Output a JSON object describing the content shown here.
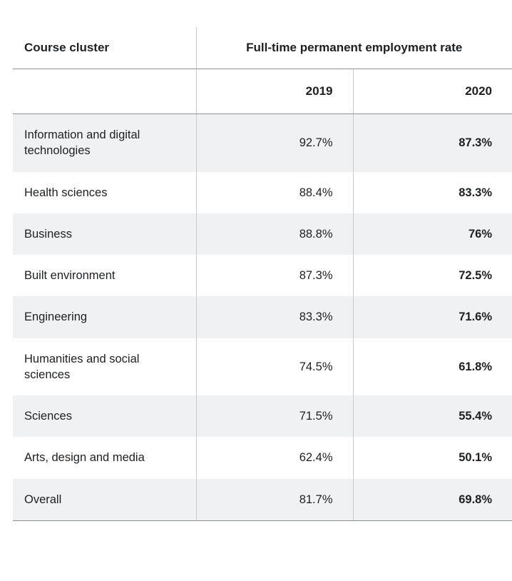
{
  "table": {
    "col1_header": "Course cluster",
    "group_header": "Full-time permanent employment rate",
    "year_headers": [
      "2019",
      "2020"
    ],
    "rows": [
      {
        "label": "Information and digital technologies",
        "y2019": "92.7%",
        "y2020": "87.3%"
      },
      {
        "label": "Health sciences",
        "y2019": "88.4%",
        "y2020": "83.3%"
      },
      {
        "label": "Business",
        "y2019": "88.8%",
        "y2020": "76%"
      },
      {
        "label": "Built environment",
        "y2019": "87.3%",
        "y2020": "72.5%"
      },
      {
        "label": "Engineering",
        "y2019": "83.3%",
        "y2020": "71.6%"
      },
      {
        "label": "Humanities and social sciences",
        "y2019": "74.5%",
        "y2020": "61.8%"
      },
      {
        "label": "Sciences",
        "y2019": "71.5%",
        "y2020": "55.4%"
      },
      {
        "label": "Arts, design and media",
        "y2019": "62.4%",
        "y2020": "50.1%"
      },
      {
        "label": "Overall",
        "y2019": "81.7%",
        "y2020": "69.8%"
      }
    ]
  },
  "chart_data": {
    "type": "table",
    "title": "Full-time permanent employment rate",
    "columns": [
      "Course cluster",
      "2019",
      "2020"
    ],
    "rows": [
      {
        "course_cluster": "Information and digital technologies",
        "2019": 92.7,
        "2020": 87.3
      },
      {
        "course_cluster": "Health sciences",
        "2019": 88.4,
        "2020": 83.3
      },
      {
        "course_cluster": "Business",
        "2019": 88.8,
        "2020": 76.0
      },
      {
        "course_cluster": "Built environment",
        "2019": 87.3,
        "2020": 72.5
      },
      {
        "course_cluster": "Engineering",
        "2019": 83.3,
        "2020": 71.6
      },
      {
        "course_cluster": "Humanities and social sciences",
        "2019": 74.5,
        "2020": 61.8
      },
      {
        "course_cluster": "Sciences",
        "2019": 71.5,
        "2020": 55.4
      },
      {
        "course_cluster": "Arts, design and media",
        "2019": 62.4,
        "2020": 50.1
      },
      {
        "course_cluster": "Overall",
        "2019": 81.7,
        "2020": 69.8
      }
    ],
    "notes": "2020 column rendered bold; alternating light-gray row stripes; values right-aligned"
  },
  "colors": {
    "stripe_bg": "#eff1f2",
    "rule_dark": "#8f9294",
    "rule_light": "#c7cacc",
    "text": "#1d1f21"
  }
}
